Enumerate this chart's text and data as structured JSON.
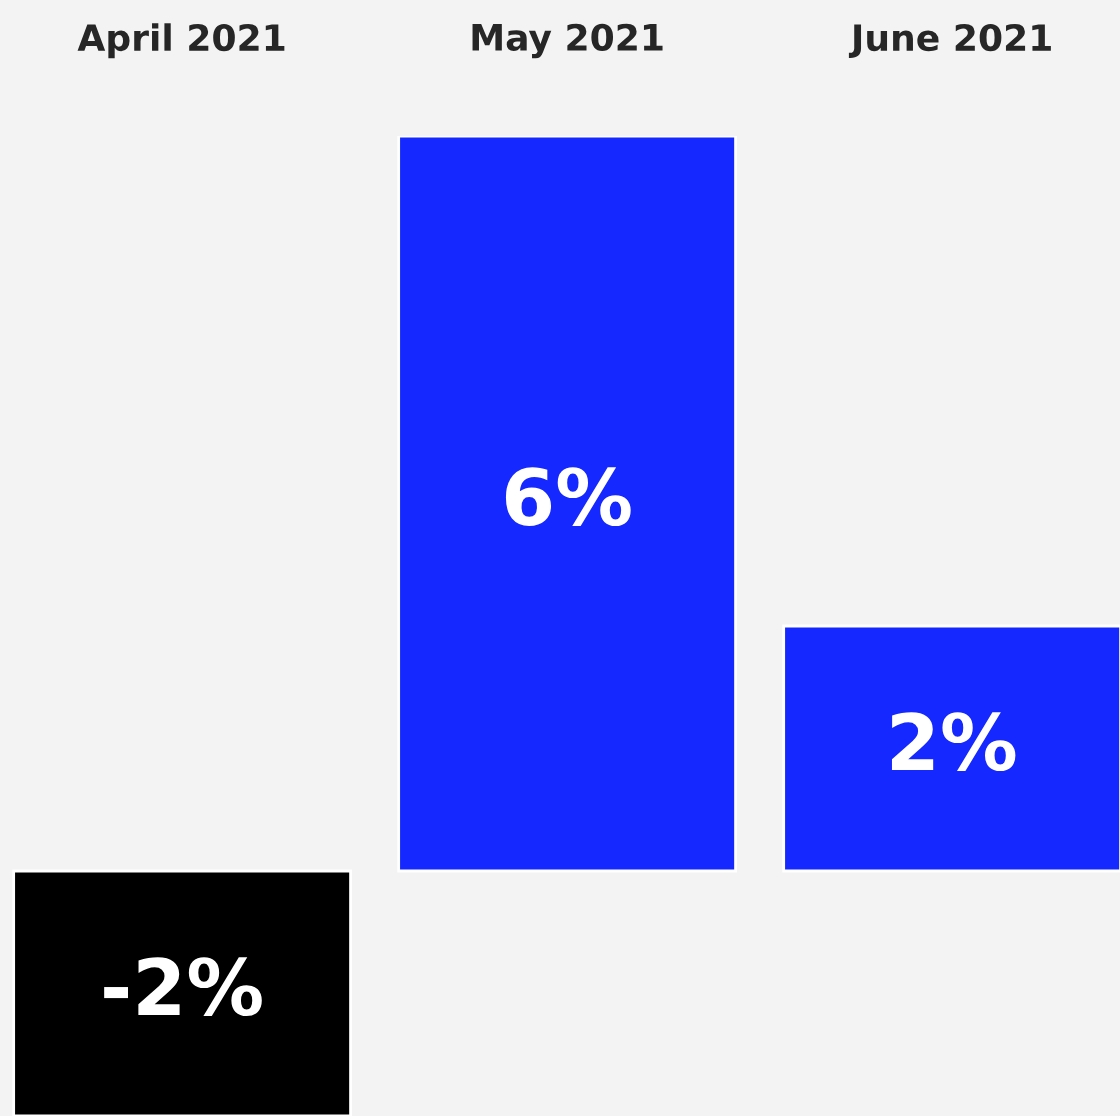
{
  "chart_data": {
    "type": "bar",
    "categories": [
      "April 2021",
      "May 2021",
      "June 2021"
    ],
    "values": [
      -2,
      6,
      2
    ],
    "colors": [
      "#000000",
      "#1428ff",
      "#1428ff"
    ],
    "value_labels": [
      "-2%",
      "6%",
      "2%"
    ],
    "grid": false,
    "legend": false
  }
}
